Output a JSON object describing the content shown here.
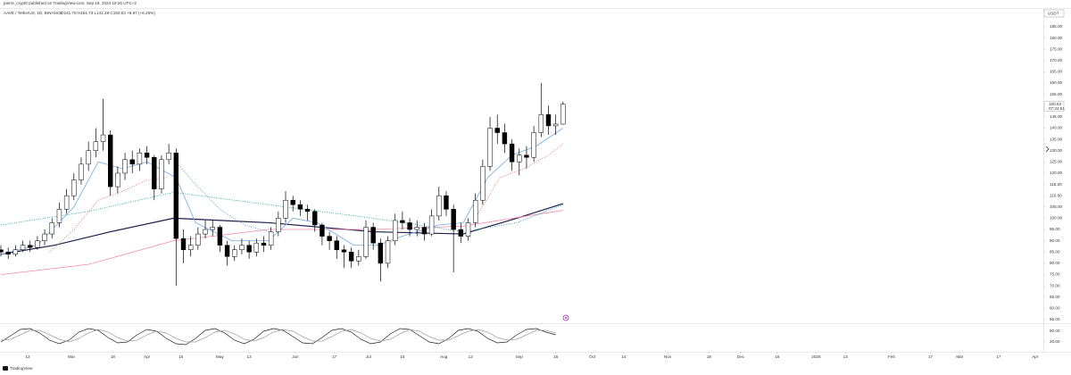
{
  "chart_data": {
    "type": "candlestick",
    "header": "pierre_crypt0 published on TradingView.com, Sep 19, 2024 18:25 UTC+2",
    "symbol": "AAVE / TetherUS, 1D, BINANCE",
    "legend_values": "O141.78 H151.73 L141.49 C150.63 +8.87 (+6.26%)",
    "currency": "USDT",
    "countdown": "07:34:51",
    "logo": "TradingView",
    "up_color": "#ffffff",
    "down_color": "#000000",
    "border_color": "#000000",
    "xlim": [
      0,
      428
    ],
    "xticks": [
      {
        "value": 11,
        "label": "12"
      },
      {
        "value": 29,
        "label": "Mar"
      },
      {
        "value": 46,
        "label": "18"
      },
      {
        "value": 60,
        "label": "Apr"
      },
      {
        "value": 74,
        "label": "15"
      },
      {
        "value": 90,
        "label": "May"
      },
      {
        "value": 102,
        "label": "13"
      },
      {
        "value": 121,
        "label": "Jun"
      },
      {
        "value": 137,
        "label": "17"
      },
      {
        "value": 151,
        "label": "Jul"
      },
      {
        "value": 165,
        "label": "15"
      },
      {
        "value": 182,
        "label": "Aug"
      },
      {
        "value": 193,
        "label": "12"
      },
      {
        "value": 213,
        "label": "Sep"
      },
      {
        "value": 228,
        "label": "16"
      },
      {
        "value": 243,
        "label": "Oct"
      },
      {
        "value": 256,
        "label": "14"
      },
      {
        "value": 274,
        "label": "Nov"
      },
      {
        "value": 291,
        "label": "18"
      },
      {
        "value": 304,
        "label": "Dec"
      },
      {
        "value": 319,
        "label": "16"
      },
      {
        "value": 335,
        "label": "2025"
      },
      {
        "value": 347,
        "label": "13"
      },
      {
        "value": 366,
        "label": "Feb"
      },
      {
        "value": 382,
        "label": "17"
      },
      {
        "value": 394,
        "label": "Mar"
      },
      {
        "value": 410,
        "label": "17"
      },
      {
        "value": 425,
        "label": "Apr"
      }
    ],
    "ylim": [
      53.4,
      192.9
    ],
    "yticks": [
      {
        "value": 55,
        "label": "55.00"
      },
      {
        "value": 60,
        "label": "60.00"
      },
      {
        "value": 65,
        "label": "65.00"
      },
      {
        "value": 70,
        "label": "70.00"
      },
      {
        "value": 75,
        "label": "75.00"
      },
      {
        "value": 80,
        "label": "80.00"
      },
      {
        "value": 85,
        "label": "85.00"
      },
      {
        "value": 90,
        "label": "90.00"
      },
      {
        "value": 95,
        "label": "95.00"
      },
      {
        "value": 100,
        "label": "100.00"
      },
      {
        "value": 105,
        "label": "105.00"
      },
      {
        "value": 110,
        "label": "110.00"
      },
      {
        "value": 115,
        "label": "115.00"
      },
      {
        "value": 120,
        "label": "120.00"
      },
      {
        "value": 125,
        "label": "125.00"
      },
      {
        "value": 130,
        "label": "130.00"
      },
      {
        "value": 135,
        "label": "135.00"
      },
      {
        "value": 140,
        "label": "140.00"
      },
      {
        "value": 145,
        "label": "145.00"
      },
      {
        "value": 150,
        "label": "150.00"
      },
      {
        "value": 155,
        "label": "155.00"
      },
      {
        "value": 160,
        "label": "160.00"
      },
      {
        "value": 165,
        "label": "165.00"
      },
      {
        "value": 170,
        "label": "170.00"
      },
      {
        "value": 175,
        "label": "175.00"
      },
      {
        "value": 180,
        "label": "180.00"
      },
      {
        "value": 185,
        "label": "185.00"
      }
    ],
    "candles": [
      [
        0,
        86,
        88,
        83,
        85
      ],
      [
        3,
        85,
        87,
        82,
        84
      ],
      [
        6,
        84,
        88,
        83,
        86
      ],
      [
        9,
        86,
        90,
        85,
        88
      ],
      [
        12,
        88,
        90,
        85,
        87
      ],
      [
        15,
        87,
        92,
        86,
        90
      ],
      [
        18,
        90,
        95,
        88,
        93
      ],
      [
        21,
        93,
        100,
        91,
        98
      ],
      [
        24,
        98,
        107,
        96,
        104
      ],
      [
        27,
        104,
        113,
        102,
        110
      ],
      [
        30,
        110,
        120,
        108,
        117
      ],
      [
        33,
        117,
        127,
        115,
        124
      ],
      [
        36,
        124,
        134,
        121,
        130
      ],
      [
        39,
        130,
        140,
        127,
        134
      ],
      [
        42,
        134,
        153,
        130,
        137
      ],
      [
        45,
        137,
        139,
        110,
        114
      ],
      [
        48,
        114,
        123,
        111,
        120
      ],
      [
        51,
        120,
        129,
        117,
        126
      ],
      [
        54,
        126,
        130,
        120,
        124
      ],
      [
        57,
        124,
        131,
        121,
        129
      ],
      [
        60,
        129,
        132,
        124,
        127
      ],
      [
        63,
        127,
        128,
        108,
        113
      ],
      [
        66,
        113,
        128,
        111,
        126
      ],
      [
        69,
        126,
        133,
        124,
        129
      ],
      [
        72,
        129,
        131,
        70,
        91
      ],
      [
        75,
        91,
        95,
        80,
        86
      ],
      [
        78,
        86,
        92,
        83,
        88
      ],
      [
        81,
        88,
        96,
        86,
        93
      ],
      [
        84,
        93,
        99,
        91,
        95
      ],
      [
        87,
        95,
        99,
        92,
        96
      ],
      [
        90,
        96,
        97,
        85,
        88
      ],
      [
        93,
        88,
        90,
        79,
        83
      ],
      [
        96,
        83,
        88,
        81,
        86
      ],
      [
        99,
        86,
        91,
        84,
        88
      ],
      [
        102,
        88,
        90,
        82,
        85
      ],
      [
        105,
        85,
        91,
        83,
        89
      ],
      [
        108,
        89,
        92,
        85,
        88
      ],
      [
        111,
        88,
        96,
        86,
        94
      ],
      [
        114,
        94,
        103,
        92,
        100
      ],
      [
        117,
        100,
        112,
        98,
        108
      ],
      [
        120,
        108,
        110,
        103,
        106
      ],
      [
        123,
        106,
        108,
        101,
        104
      ],
      [
        126,
        104,
        106,
        99,
        103
      ],
      [
        129,
        103,
        104,
        94,
        97
      ],
      [
        132,
        97,
        98,
        88,
        92
      ],
      [
        135,
        92,
        94,
        86,
        90
      ],
      [
        138,
        90,
        92,
        82,
        86
      ],
      [
        141,
        86,
        88,
        78,
        85
      ],
      [
        144,
        85,
        87,
        78,
        81
      ],
      [
        147,
        81,
        86,
        79,
        83
      ],
      [
        150,
        83,
        99,
        82,
        96
      ],
      [
        153,
        96,
        98,
        86,
        89
      ],
      [
        156,
        89,
        91,
        72,
        80
      ],
      [
        159,
        80,
        92,
        78,
        90
      ],
      [
        162,
        90,
        102,
        88,
        99
      ],
      [
        165,
        99,
        103,
        95,
        98
      ],
      [
        168,
        98,
        100,
        92,
        95
      ],
      [
        171,
        95,
        99,
        92,
        96
      ],
      [
        174,
        96,
        98,
        90,
        93
      ],
      [
        177,
        93,
        104,
        92,
        101
      ],
      [
        180,
        101,
        114,
        99,
        110
      ],
      [
        183,
        110,
        112,
        101,
        104
      ],
      [
        186,
        104,
        106,
        76,
        95
      ],
      [
        189,
        95,
        98,
        89,
        92
      ],
      [
        192,
        92,
        100,
        90,
        98
      ],
      [
        195,
        98,
        111,
        96,
        108
      ],
      [
        198,
        108,
        126,
        106,
        123
      ],
      [
        201,
        123,
        145,
        121,
        140
      ],
      [
        204,
        140,
        146,
        133,
        138
      ],
      [
        207,
        138,
        142,
        129,
        133
      ],
      [
        210,
        133,
        135,
        121,
        125
      ],
      [
        213,
        125,
        131,
        119,
        128
      ],
      [
        216,
        128,
        132,
        122,
        127
      ],
      [
        219,
        127,
        141,
        125,
        138
      ],
      [
        222,
        138,
        160,
        136,
        146
      ],
      [
        225,
        146,
        150,
        137,
        141
      ],
      [
        228,
        141,
        146,
        137,
        141.78
      ],
      [
        231,
        141.78,
        151.73,
        141.49,
        150.63
      ]
    ],
    "lines": [
      {
        "color": "#1a1f4d",
        "dash": "",
        "width": 1.2,
        "x": [
          0,
          22,
          45,
          71,
          110,
          153,
          190,
          212,
          231
        ],
        "values": [
          84,
          88,
          94,
          100,
          98,
          94,
          93,
          100,
          106.5
        ]
      },
      {
        "color": "#f08aa8",
        "dash": "",
        "width": 0.8,
        "x": [
          0,
          36,
          71,
          110,
          153,
          190,
          231
        ],
        "values": [
          75,
          79.5,
          90,
          95,
          95,
          96.5,
          103.5
        ]
      },
      {
        "color": "#26a69a",
        "dash": "1,1.5",
        "width": 0.9,
        "x": [
          0,
          36,
          71,
          110,
          153,
          190,
          212,
          231
        ],
        "values": [
          97,
          103,
          111.5,
          106,
          100,
          94,
          98,
          106
        ]
      },
      {
        "color": "#7fb3e6",
        "dash": "",
        "width": 0.9,
        "x": [
          0,
          15,
          30,
          40,
          50,
          60,
          72,
          80,
          95,
          110,
          120,
          130,
          145,
          155,
          165,
          180,
          190,
          200,
          210,
          220,
          231
        ],
        "values": [
          84,
          88,
          105,
          125,
          122,
          125,
          118,
          98,
          90,
          90,
          100,
          98,
          88,
          88,
          92,
          97,
          98,
          118,
          128,
          132,
          140
        ]
      },
      {
        "color": "#e57373",
        "dash": "1,1.5",
        "width": 0.9,
        "x": [
          20,
          30,
          40,
          50,
          60,
          68,
          130,
          195,
          205,
          215,
          225,
          231
        ],
        "values": [
          85,
          95,
          108,
          112,
          117,
          118,
          null,
          100,
          118,
          122,
          128,
          133
        ]
      },
      {
        "color": "#5b9bd5",
        "dash": "1,1.5",
        "width": 0.9,
        "x": [
          72,
          80,
          90,
          100,
          110
        ],
        "values": [
          125,
          115,
          104,
          97,
          94
        ]
      }
    ],
    "oscillator": {
      "ylim": [
        -35,
        125
      ],
      "yticks": [
        {
          "value": 80,
          "label": "80.00"
        },
        {
          "value": 20,
          "label": "20.00"
        }
      ],
      "x": [
        0,
        4,
        8,
        12,
        16,
        20,
        24,
        28,
        32,
        36,
        40,
        44,
        48,
        52,
        56,
        60,
        64,
        68,
        72,
        76,
        80,
        84,
        88,
        92,
        96,
        100,
        104,
        108,
        112,
        116,
        120,
        124,
        128,
        132,
        136,
        140,
        144,
        148,
        152,
        156,
        160,
        164,
        168,
        172,
        176,
        180,
        184,
        188,
        192,
        196,
        200,
        204,
        208,
        212,
        216,
        220,
        224,
        228
      ],
      "series": [
        {
          "color": "#222222",
          "values": [
            20,
            55,
            90,
            95,
            70,
            30,
            10,
            30,
            75,
            95,
            85,
            45,
            15,
            20,
            60,
            90,
            80,
            40,
            10,
            5,
            40,
            85,
            95,
            70,
            30,
            10,
            35,
            80,
            95,
            85,
            50,
            15,
            10,
            45,
            85,
            95,
            75,
            35,
            10,
            20,
            65,
            95,
            90,
            55,
            20,
            10,
            40,
            85,
            95,
            80,
            40,
            15,
            20,
            60,
            90,
            95,
            75,
            60
          ]
        },
        {
          "color": "#9e9e9e",
          "values": [
            30,
            35,
            60,
            85,
            85,
            60,
            35,
            20,
            40,
            70,
            90,
            75,
            45,
            25,
            30,
            60,
            80,
            70,
            40,
            20,
            20,
            45,
            75,
            85,
            65,
            35,
            25,
            45,
            75,
            90,
            80,
            50,
            25,
            25,
            50,
            80,
            90,
            70,
            40,
            25,
            35,
            65,
            90,
            80,
            50,
            30,
            30,
            55,
            80,
            90,
            75,
            45,
            30,
            35,
            60,
            85,
            85,
            70
          ]
        }
      ]
    }
  }
}
